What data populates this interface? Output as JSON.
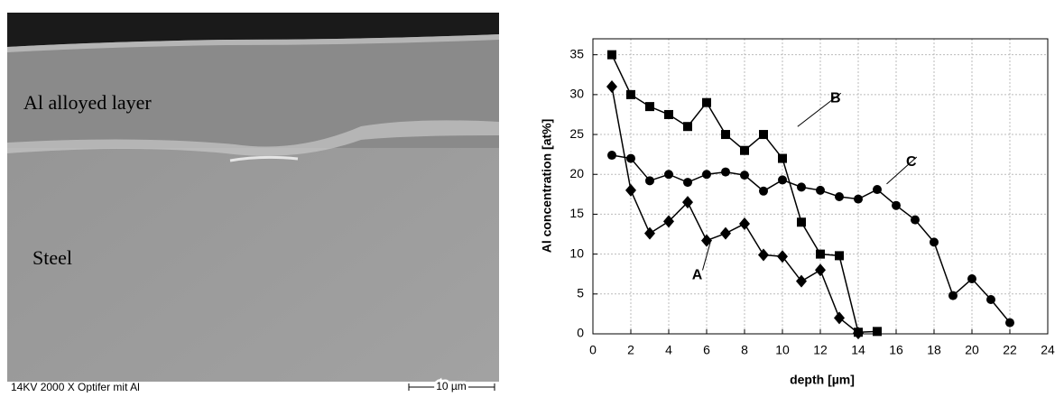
{
  "micrograph": {
    "layer_label": "Al alloyed layer",
    "substrate_label": "Steel",
    "caption": "14KV   2000 X Optifer mit Al",
    "scale_label": "10 µm"
  },
  "chart_data": {
    "type": "line",
    "x_label": "depth [µm]",
    "y_label": "Al concentration [at%]",
    "xlim": [
      0,
      24
    ],
    "ylim": [
      0,
      37
    ],
    "xticks": [
      0,
      2,
      4,
      6,
      8,
      10,
      12,
      14,
      16,
      18,
      20,
      22,
      24
    ],
    "yticks": [
      0,
      5,
      10,
      15,
      20,
      25,
      30,
      35
    ],
    "grid": true,
    "series": [
      {
        "name": "A",
        "color": "#000000",
        "marker": "diamond",
        "x": [
          1,
          2,
          3,
          4,
          5,
          6,
          7,
          8,
          9,
          10,
          11,
          12,
          13,
          14
        ],
        "values": [
          31,
          18,
          12.6,
          14.1,
          16.5,
          11.7,
          12.6,
          13.8,
          9.9,
          9.7,
          6.6,
          8,
          2,
          0.1
        ]
      },
      {
        "name": "B",
        "color": "#000000",
        "marker": "square",
        "x": [
          1,
          2,
          3,
          4,
          5,
          6,
          7,
          8,
          9,
          10,
          11,
          12,
          13,
          14,
          15
        ],
        "values": [
          35,
          30,
          28.5,
          27.5,
          26,
          29,
          25,
          23,
          25,
          22,
          14,
          10,
          9.8,
          0.2,
          0.3
        ]
      },
      {
        "name": "C",
        "color": "#000000",
        "marker": "circle",
        "x": [
          1,
          2,
          3,
          4,
          5,
          6,
          7,
          8,
          9,
          10,
          11,
          12,
          13,
          14,
          15,
          16,
          17,
          18,
          19,
          20,
          21,
          22
        ],
        "values": [
          22.4,
          22,
          19.2,
          20,
          19,
          20,
          20.3,
          19.9,
          17.9,
          19.3,
          18.4,
          18,
          17.2,
          16.9,
          18.1,
          16.1,
          14.3,
          11.5,
          4.8,
          6.9,
          4.3,
          1.4
        ]
      }
    ]
  }
}
